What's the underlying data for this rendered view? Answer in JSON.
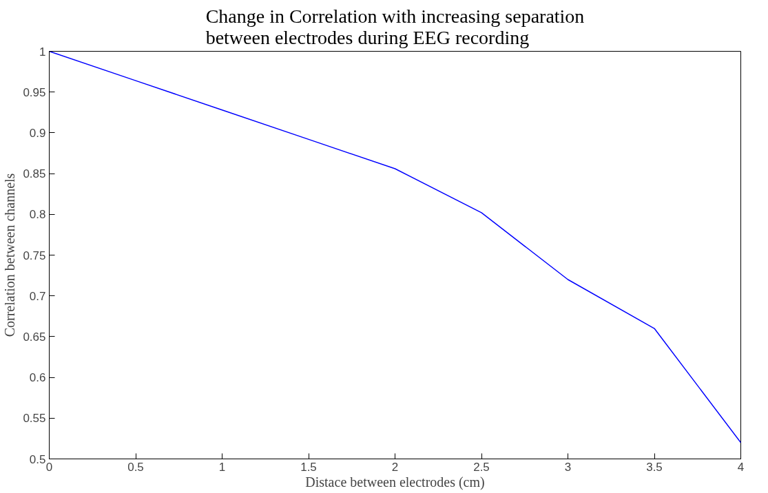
{
  "chart_data": {
    "type": "line",
    "title": "Change in Correlation with increasing separation\nbetween electrodes during EEG recording",
    "xlabel": "Distace between electrodes (cm)",
    "ylabel": "Correlation between channels",
    "x": [
      0,
      0.5,
      1,
      1.5,
      2,
      2.5,
      3,
      3.5,
      4
    ],
    "series": [
      {
        "color": "#0000ff",
        "values": [
          1.0,
          0.964,
          0.928,
          0.892,
          0.856,
          0.802,
          0.72,
          0.66,
          0.52
        ]
      }
    ],
    "xlim": [
      0,
      4
    ],
    "ylim": [
      0.5,
      1
    ],
    "xticks": [
      0,
      0.5,
      1,
      1.5,
      2,
      2.5,
      3,
      3.5,
      4
    ],
    "yticks": [
      0.5,
      0.55,
      0.6,
      0.65,
      0.7,
      0.75,
      0.8,
      0.85,
      0.9,
      0.95,
      1
    ],
    "grid": false,
    "marker": "none",
    "line_style": "solid"
  }
}
